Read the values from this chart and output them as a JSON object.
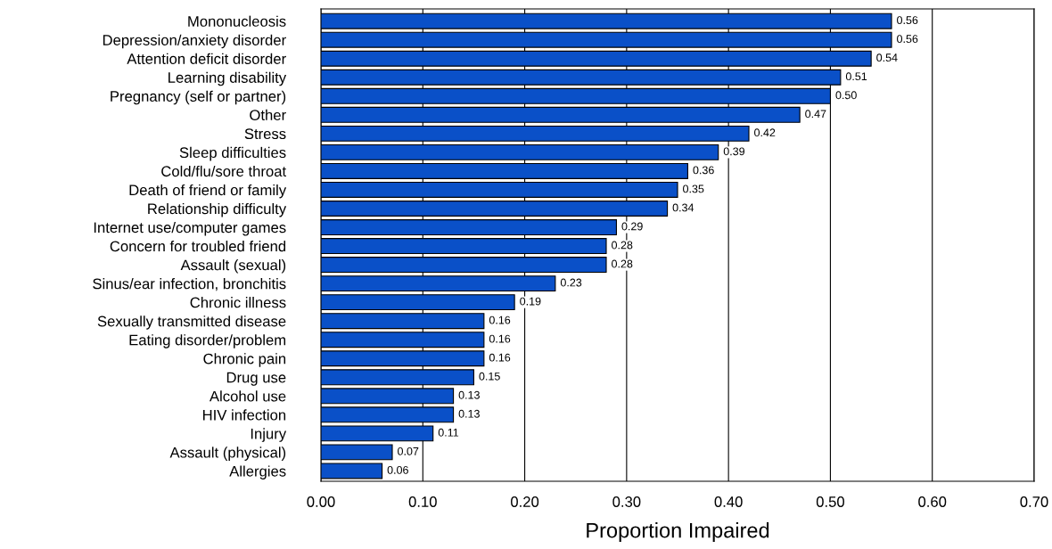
{
  "chart_data": {
    "type": "bar",
    "orientation": "horizontal",
    "xlabel": "Proportion Impaired",
    "categories": [
      "Mononucleosis",
      "Depression/anxiety disorder",
      "Attention deficit disorder",
      "Learning disability",
      "Pregnancy (self or partner)",
      "Other",
      "Stress",
      "Sleep difficulties",
      "Cold/flu/sore throat",
      "Death of friend or family",
      "Relationship difficulty",
      "Internet use/computer games",
      "Concern for troubled friend",
      "Assault (sexual)",
      "Sinus/ear infection, bronchitis",
      "Chronic illness",
      "Sexually transmitted disease",
      "Eating disorder/problem",
      "Chronic pain",
      "Drug use",
      "Alcohol use",
      "HIV infection",
      "Injury",
      "Assault (physical)",
      "Allergies"
    ],
    "values": [
      0.56,
      0.56,
      0.54,
      0.51,
      0.5,
      0.47,
      0.42,
      0.39,
      0.36,
      0.35,
      0.34,
      0.29,
      0.28,
      0.28,
      0.23,
      0.19,
      0.16,
      0.16,
      0.16,
      0.15,
      0.13,
      0.13,
      0.11,
      0.07,
      0.06
    ],
    "value_labels": [
      "0.56",
      "0.56",
      "0.54",
      "0.51",
      "0.50",
      "0.47",
      "0.42",
      "0.39",
      "0.36",
      "0.35",
      "0.34",
      "0.29",
      "0.28",
      "0.28",
      "0.23",
      "0.19",
      "0.16",
      "0.16",
      "0.16",
      "0.15",
      "0.13",
      "0.13",
      "0.11",
      "0.07",
      "0.06"
    ],
    "color": "#0a50c8",
    "xlim": [
      0,
      0.7
    ],
    "xticks": [
      {
        "value": 0,
        "label": "0.00"
      },
      {
        "value": 0.1,
        "label": "0.10"
      },
      {
        "value": 0.2,
        "label": "0.20"
      },
      {
        "value": 0.3,
        "label": "0.30"
      },
      {
        "value": 0.4,
        "label": "0.40"
      },
      {
        "value": 0.5,
        "label": "0.50"
      },
      {
        "value": 0.6,
        "label": "0.60"
      },
      {
        "value": 0.7,
        "label": "0.70"
      }
    ],
    "grid": "x"
  }
}
